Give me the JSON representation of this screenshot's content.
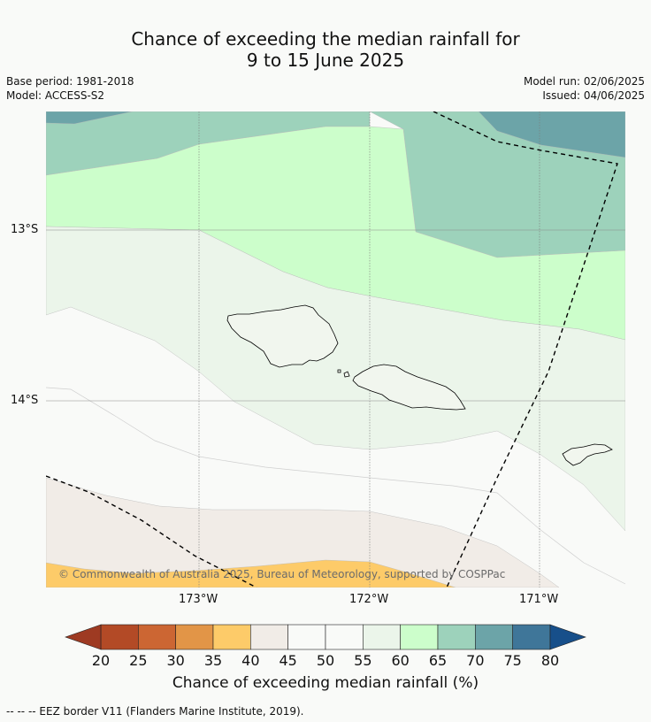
{
  "header": {
    "title_line1": "Chance of exceeding the median rainfall for",
    "title_line2": "9 to 15 June 2025",
    "base_period": "Base period: 1981-2018",
    "model": "Model: ACCESS-S2",
    "model_run": "Model run: 02/06/2025",
    "issued": "Issued: 04/06/2025"
  },
  "map": {
    "lat_labels": [
      "13°S",
      "14°S"
    ],
    "lon_labels": [
      "173°W",
      "172°W",
      "171°W"
    ],
    "copyright": "© Commonwealth of Australia 2025, Bureau of Meteorology, supported by COSPPac",
    "fill_colors": {
      "c20_25": "#b34a26",
      "c25_30": "#cc6633",
      "c30_35": "#e29547",
      "c35_40": "#fdcb69",
      "c40_45": "#f1ece7",
      "c45_55": "#f9faf8",
      "c55_60": "#ebf5ea",
      "c60_65": "#ccfecb",
      "c65_70": "#9dd2bb",
      "c70_75": "#6ca4a8",
      "c75_80": "#3f7699"
    }
  },
  "colorbar": {
    "ticks": [
      "20",
      "25",
      "30",
      "35",
      "40",
      "45",
      "50",
      "55",
      "60",
      "65",
      "70",
      "75",
      "80"
    ],
    "colors": [
      "#b34a26",
      "#cc6633",
      "#e29547",
      "#fdcb69",
      "#f1ece7",
      "#f9faf8",
      "#f9faf8",
      "#ebf5ea",
      "#ccfecb",
      "#9dd2bb",
      "#6ca4a8",
      "#3f7699"
    ],
    "under_color": "#9e3a22",
    "over_color": "#174f8a",
    "title": "Chance of exceeding median rainfall (%)"
  },
  "footer": {
    "eez_note": "--  --  -- EEZ border V11 (Flanders Marine Institute, 2019)."
  }
}
